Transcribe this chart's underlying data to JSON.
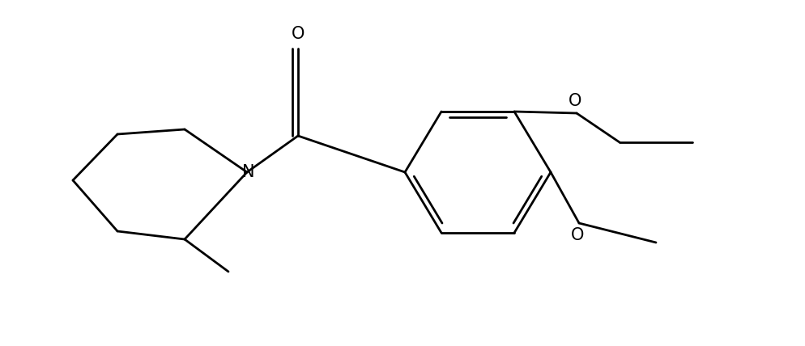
{
  "bg_color": "#ffffff",
  "line_color": "#000000",
  "line_width": 2.0,
  "font_size": 15,
  "figsize": [
    9.94,
    4.28
  ],
  "dpi": 100,
  "xlim": [
    0,
    9.94
  ],
  "ylim": [
    0,
    4.28
  ]
}
